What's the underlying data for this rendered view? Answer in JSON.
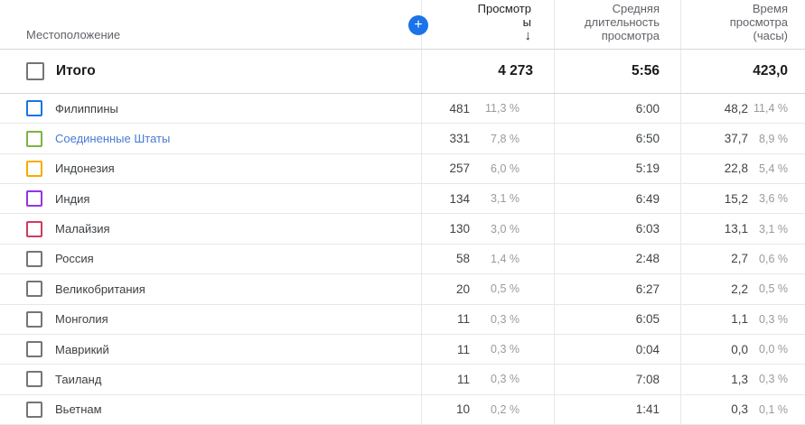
{
  "header": {
    "location_label": "Местоположение",
    "add_button": "+",
    "views_col": {
      "line1": "Просмотр",
      "line2": "ы",
      "sort_icon": "↓"
    },
    "duration_col": {
      "line1": "Средняя",
      "line2": "длительность",
      "line3": "просмотра"
    },
    "watch_col": {
      "line1": "Время",
      "line2": "просмотра",
      "line3": "(часы)"
    }
  },
  "totals": {
    "label": "Итого",
    "views": "4 273",
    "avg_duration": "5:56",
    "watch_hours": "423,0"
  },
  "rows": [
    {
      "name": "Филиппины",
      "checkbox_color": "#1a73e8",
      "name_color": "#3c4043",
      "views": "481",
      "views_pct": "11,3 %",
      "avg_duration": "6:00",
      "watch_hours": "48,2",
      "watch_pct": "11,4 %"
    },
    {
      "name": "Соединенные Штаты",
      "checkbox_color": "#7cb342",
      "name_color": "#4a7bd4",
      "views": "331",
      "views_pct": "7,8 %",
      "avg_duration": "6:50",
      "watch_hours": "37,7",
      "watch_pct": "8,9 %"
    },
    {
      "name": "Индонезия",
      "checkbox_color": "#f9ab00",
      "name_color": "#3c4043",
      "views": "257",
      "views_pct": "6,0 %",
      "avg_duration": "5:19",
      "watch_hours": "22,8",
      "watch_pct": "5,4 %"
    },
    {
      "name": "Индия",
      "checkbox_color": "#9334e6",
      "name_color": "#3c4043",
      "views": "134",
      "views_pct": "3,1 %",
      "avg_duration": "6:49",
      "watch_hours": "15,2",
      "watch_pct": "3,6 %"
    },
    {
      "name": "Малайзия",
      "checkbox_color": "#d23a5e",
      "name_color": "#3c4043",
      "views": "130",
      "views_pct": "3,0 %",
      "avg_duration": "6:03",
      "watch_hours": "13,1",
      "watch_pct": "3,1 %"
    },
    {
      "name": "Россия",
      "checkbox_color": "#757575",
      "name_color": "#3c4043",
      "views": "58",
      "views_pct": "1,4 %",
      "avg_duration": "2:48",
      "watch_hours": "2,7",
      "watch_pct": "0,6 %"
    },
    {
      "name": "Великобритания",
      "checkbox_color": "#757575",
      "name_color": "#3c4043",
      "views": "20",
      "views_pct": "0,5 %",
      "avg_duration": "6:27",
      "watch_hours": "2,2",
      "watch_pct": "0,5 %"
    },
    {
      "name": "Монголия",
      "checkbox_color": "#757575",
      "name_color": "#3c4043",
      "views": "11",
      "views_pct": "0,3 %",
      "avg_duration": "6:05",
      "watch_hours": "1,1",
      "watch_pct": "0,3 %"
    },
    {
      "name": "Маврикий",
      "checkbox_color": "#757575",
      "name_color": "#3c4043",
      "views": "11",
      "views_pct": "0,3 %",
      "avg_duration": "0:04",
      "watch_hours": "0,0",
      "watch_pct": "0,0 %"
    },
    {
      "name": "Таиланд",
      "checkbox_color": "#757575",
      "name_color": "#3c4043",
      "views": "11",
      "views_pct": "0,3 %",
      "avg_duration": "7:08",
      "watch_hours": "1,3",
      "watch_pct": "0,3 %"
    },
    {
      "name": "Вьетнам",
      "checkbox_color": "#757575",
      "name_color": "#3c4043",
      "views": "10",
      "views_pct": "0,2 %",
      "avg_duration": "1:41",
      "watch_hours": "0,3",
      "watch_pct": "0,1 %"
    }
  ],
  "colors": {
    "accent_blue": "#1a73e8",
    "link_blue": "#4a7bd4",
    "series_green": "#7cb342",
    "series_amber": "#f9ab00",
    "series_purple": "#9334e6",
    "series_pink": "#d23a5e",
    "checkbox_gray": "#757575",
    "pct_gray": "#9a9a9a",
    "header_gray": "#606368"
  }
}
